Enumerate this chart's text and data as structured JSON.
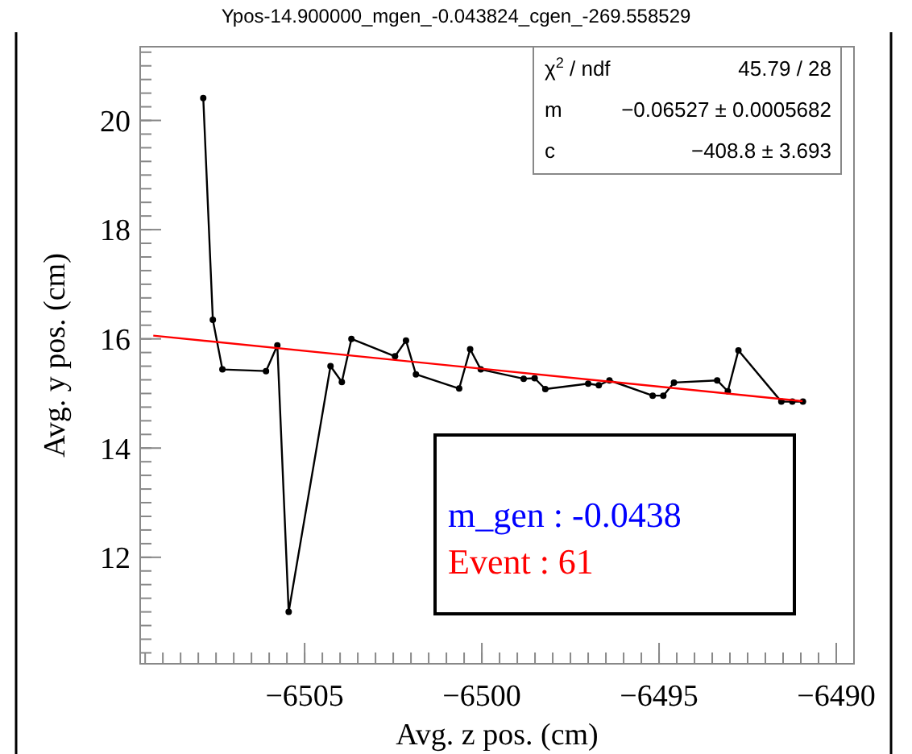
{
  "chart_data": {
    "type": "line",
    "title": "Ypos-14.900000_mgen_-0.043824_cgen_-269.558529",
    "xlabel": "Avg. z pos. (cm)",
    "ylabel": "Avg. y pos. (cm)",
    "xlim": [
      -6509.64,
      -6489.5
    ],
    "ylim": [
      10.05,
      21.35
    ],
    "xticks": [
      {
        "value": -6505,
        "label": "−6505"
      },
      {
        "value": -6500,
        "label": "−6500"
      },
      {
        "value": -6495,
        "label": "−6495"
      },
      {
        "value": -6490,
        "label": "−6490"
      }
    ],
    "yticks": [
      12,
      14,
      16,
      18,
      20
    ],
    "marker": "circle",
    "grid": false,
    "series": [
      {
        "color": "#000000",
        "x": [
          -6507.86,
          -6507.59,
          -6507.32,
          -6506.09,
          -6505.77,
          -6505.45,
          -6504.27,
          -6503.95,
          -6503.68,
          -6502.45,
          -6502.14,
          -6501.86,
          -6500.64,
          -6500.33,
          -6500.03,
          -6498.82,
          -6498.51,
          -6498.21,
          -6497.0,
          -6496.7,
          -6496.4,
          -6495.18,
          -6494.88,
          -6494.58,
          -6493.36,
          -6493.06,
          -6492.76,
          -6491.55,
          -6491.24,
          -6490.94
        ],
        "values": [
          20.41,
          16.35,
          15.44,
          15.41,
          15.88,
          11.0,
          15.5,
          15.21,
          16.0,
          15.68,
          15.97,
          15.35,
          15.09,
          15.81,
          15.44,
          15.27,
          15.28,
          15.08,
          15.18,
          15.15,
          15.24,
          14.96,
          14.96,
          15.2,
          15.24,
          15.04,
          15.79,
          14.85,
          14.85,
          14.85
        ]
      },
      {
        "type": "line",
        "color": "#ff0000",
        "marker": "none",
        "x": [
          -6509.27,
          -6490.95
        ],
        "values": [
          16.06,
          14.86
        ]
      }
    ],
    "annotations": [
      "χ$^{2}$ / ndf",
      "45.79 / 28",
      "m",
      "−0.06527 ± 0.0005682",
      "c",
      "−408.8 ± 3.693",
      "m_gen : -0.0438",
      "Event : 61"
    ]
  }
}
